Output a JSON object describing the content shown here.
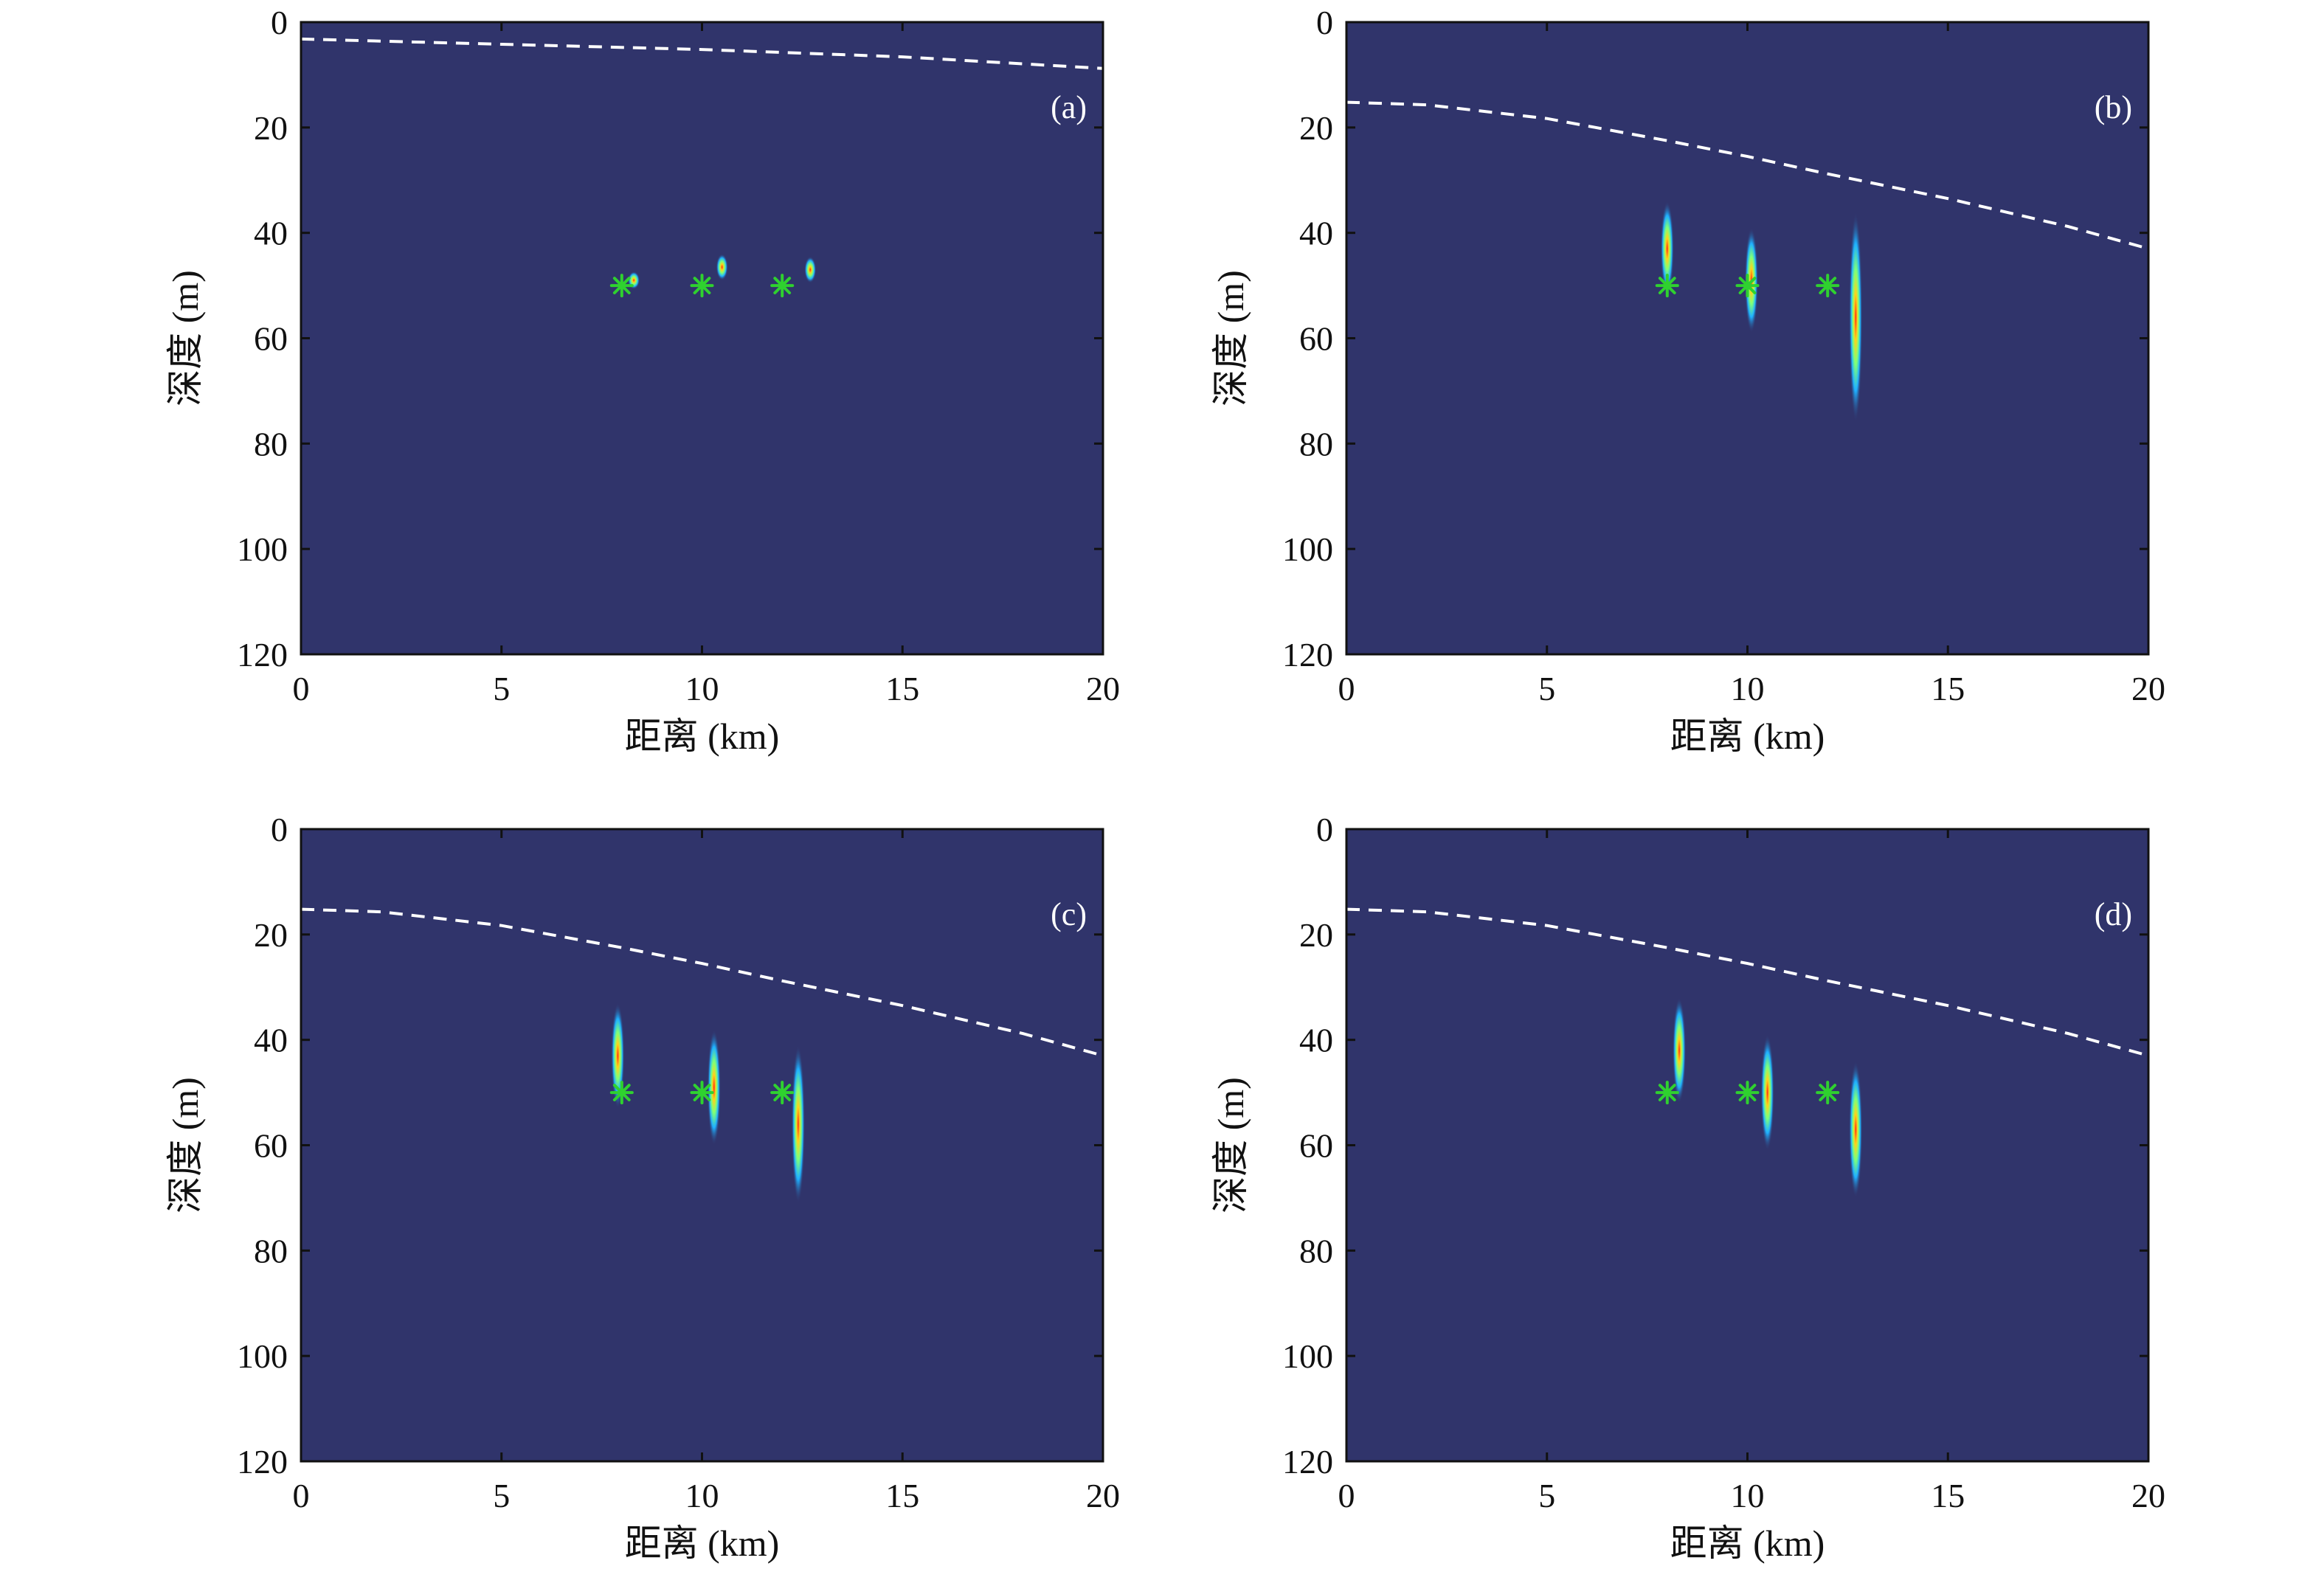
{
  "figure": {
    "background": "#ffffff",
    "plot_background": "#30346b",
    "interface_color": "#ffffff",
    "marker_color": "#2fd12f",
    "marker_symbol": "*"
  },
  "chart_data": [
    {
      "type": "heatmap",
      "panel_label": "(a)",
      "xlabel": "距离 (km)",
      "ylabel": "深度 (m)",
      "xlim": [
        0,
        20
      ],
      "ylim": [
        0,
        120
      ],
      "y_reversed": true,
      "x_ticks": [
        0,
        5,
        10,
        15,
        20
      ],
      "y_ticks": [
        0,
        20,
        40,
        60,
        80,
        100,
        120
      ],
      "interface_line": {
        "style": "dashed",
        "x": [
          0,
          5,
          10,
          15,
          20
        ],
        "y": [
          3.2,
          4.2,
          5.2,
          6.6,
          8.8
        ]
      },
      "source_markers": [
        {
          "x": 8,
          "y": 50
        },
        {
          "x": 10,
          "y": 50
        },
        {
          "x": 12,
          "y": 50
        }
      ],
      "focal_spots": [
        {
          "x": 8.3,
          "y": 49,
          "depth_extent": 3
        },
        {
          "x": 10.5,
          "y": 46.5,
          "depth_extent": 5
        },
        {
          "x": 12.7,
          "y": 47,
          "depth_extent": 5
        }
      ]
    },
    {
      "type": "heatmap",
      "panel_label": "(b)",
      "xlabel": "距离 (km)",
      "ylabel": "深度 (m)",
      "xlim": [
        0,
        20
      ],
      "ylim": [
        0,
        120
      ],
      "y_reversed": true,
      "x_ticks": [
        0,
        5,
        10,
        15,
        20
      ],
      "y_ticks": [
        0,
        20,
        40,
        60,
        80,
        100,
        120
      ],
      "interface_line": {
        "style": "dashed",
        "x": [
          0,
          2,
          5,
          8,
          10,
          12,
          15,
          18,
          20
        ],
        "y": [
          15.2,
          15.7,
          18.3,
          22.5,
          25.5,
          28.8,
          33.5,
          38.8,
          43
        ]
      },
      "source_markers": [
        {
          "x": 8,
          "y": 50
        },
        {
          "x": 10,
          "y": 50
        },
        {
          "x": 12,
          "y": 50
        }
      ],
      "focal_spots": [
        {
          "x": 8,
          "y": 43,
          "depth_extent": 18
        },
        {
          "x": 10.1,
          "y": 49,
          "depth_extent": 20
        },
        {
          "x": 12.7,
          "y": 56,
          "depth_extent": 40
        }
      ]
    },
    {
      "type": "heatmap",
      "panel_label": "(c)",
      "xlabel": "距离 (km)",
      "ylabel": "深度 (m)",
      "xlim": [
        0,
        20
      ],
      "ylim": [
        0,
        120
      ],
      "y_reversed": true,
      "x_ticks": [
        0,
        5,
        10,
        15,
        20
      ],
      "y_ticks": [
        0,
        20,
        40,
        60,
        80,
        100,
        120
      ],
      "interface_line": {
        "style": "dashed",
        "x": [
          0,
          2,
          5,
          8,
          10,
          12,
          15,
          18,
          20
        ],
        "y": [
          15.2,
          15.7,
          18.3,
          22.5,
          25.5,
          28.8,
          33.5,
          38.8,
          43
        ]
      },
      "source_markers": [
        {
          "x": 8,
          "y": 50
        },
        {
          "x": 10,
          "y": 50
        },
        {
          "x": 12,
          "y": 50
        }
      ],
      "focal_spots": [
        {
          "x": 7.9,
          "y": 43,
          "depth_extent": 20
        },
        {
          "x": 10.3,
          "y": 49,
          "depth_extent": 22
        },
        {
          "x": 12.4,
          "y": 56,
          "depth_extent": 30
        }
      ]
    },
    {
      "type": "heatmap",
      "panel_label": "(d)",
      "xlabel": "距离 (km)",
      "ylabel": "深度 (m)",
      "xlim": [
        0,
        20
      ],
      "ylim": [
        0,
        120
      ],
      "y_reversed": true,
      "x_ticks": [
        0,
        5,
        10,
        15,
        20
      ],
      "y_ticks": [
        0,
        20,
        40,
        60,
        80,
        100,
        120
      ],
      "interface_line": {
        "style": "dashed",
        "x": [
          0,
          2,
          5,
          8,
          10,
          12,
          15,
          18,
          20
        ],
        "y": [
          15.2,
          15.7,
          18.3,
          22.5,
          25.5,
          28.8,
          33.5,
          38.8,
          43
        ]
      },
      "source_markers": [
        {
          "x": 8,
          "y": 50
        },
        {
          "x": 10,
          "y": 50
        },
        {
          "x": 12,
          "y": 50
        }
      ],
      "focal_spots": [
        {
          "x": 8.3,
          "y": 42,
          "depth_extent": 20
        },
        {
          "x": 10.5,
          "y": 50,
          "depth_extent": 22
        },
        {
          "x": 12.7,
          "y": 57,
          "depth_extent": 26
        }
      ]
    }
  ]
}
